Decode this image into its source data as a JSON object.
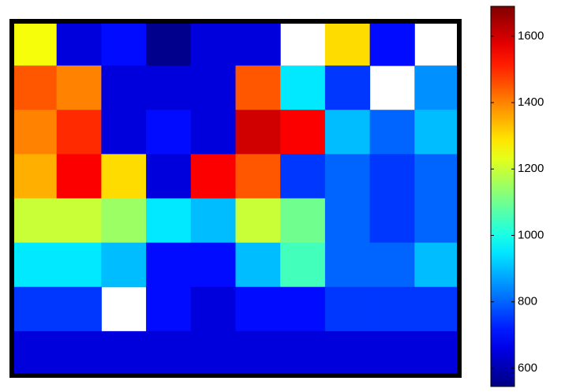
{
  "chart_data": {
    "type": "heatmap",
    "colormap": "jet",
    "z": [
      [
        1250,
        650,
        700,
        560,
        650,
        650,
        null,
        1300,
        700,
        null
      ],
      [
        1450,
        1400,
        650,
        650,
        650,
        1450,
        950,
        750,
        null,
        850
      ],
      [
        1400,
        1500,
        650,
        700,
        650,
        1600,
        1550,
        900,
        800,
        900
      ],
      [
        1350,
        1550,
        1300,
        650,
        1550,
        1450,
        750,
        800,
        750,
        800
      ],
      [
        1200,
        1200,
        1150,
        950,
        900,
        1200,
        1100,
        800,
        750,
        800
      ],
      [
        950,
        950,
        900,
        700,
        700,
        900,
        1050,
        800,
        800,
        900
      ],
      [
        750,
        750,
        null,
        700,
        650,
        700,
        700,
        750,
        750,
        750
      ],
      [
        650,
        650,
        650,
        650,
        650,
        650,
        650,
        650,
        650,
        650
      ]
    ],
    "clim": [
      545,
      1690
    ],
    "cticks": [
      600,
      800,
      1000,
      1200,
      1400,
      1600
    ]
  }
}
